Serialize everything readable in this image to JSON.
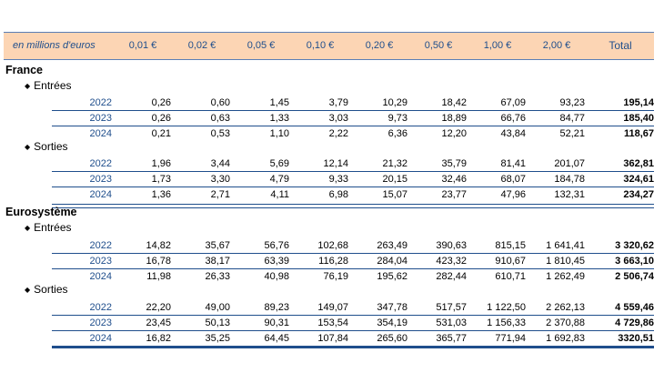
{
  "header": {
    "units": "en millions d'euros",
    "columns": [
      "0,01 €",
      "0,02 €",
      "0,05 €",
      "0,10 €",
      "0,20 €",
      "0,50 €",
      "1,00 €",
      "2,00 €"
    ],
    "total": "Total"
  },
  "sections": [
    {
      "title": "France",
      "groups": [
        {
          "label": "Entrées",
          "rows": [
            {
              "year": "2022",
              "values": [
                "0,26",
                "0,60",
                "1,45",
                "3,79",
                "10,29",
                "18,42",
                "67,09",
                "93,23"
              ],
              "total": "195,14"
            },
            {
              "year": "2023",
              "values": [
                "0,26",
                "0,63",
                "1,33",
                "3,03",
                "9,73",
                "18,89",
                "66,76",
                "84,77"
              ],
              "total": "185,40"
            },
            {
              "year": "2024",
              "values": [
                "0,21",
                "0,53",
                "1,10",
                "2,22",
                "6,36",
                "12,20",
                "43,84",
                "52,21"
              ],
              "total": "118,67"
            }
          ]
        },
        {
          "label": "Sorties",
          "rows": [
            {
              "year": "2022",
              "values": [
                "1,96",
                "3,44",
                "5,69",
                "12,14",
                "21,32",
                "35,79",
                "81,41",
                "201,07"
              ],
              "total": "362,81"
            },
            {
              "year": "2023",
              "values": [
                "1,73",
                "3,30",
                "4,79",
                "9,33",
                "20,15",
                "32,46",
                "68,07",
                "184,78"
              ],
              "total": "324,61"
            },
            {
              "year": "2024",
              "values": [
                "1,36",
                "2,71",
                "4,11",
                "6,98",
                "15,07",
                "23,77",
                "47,96",
                "132,31"
              ],
              "total": "234,27"
            }
          ]
        }
      ]
    },
    {
      "title": "Eurosystème",
      "groups": [
        {
          "label": "Entrées",
          "rows": [
            {
              "year": "2022",
              "values": [
                "14,82",
                "35,67",
                "56,76",
                "102,68",
                "263,49",
                "390,63",
                "815,15",
                "1 641,41"
              ],
              "total": "3 320,62"
            },
            {
              "year": "2023",
              "values": [
                "16,78",
                "38,17",
                "63,39",
                "116,28",
                "284,04",
                "423,32",
                "910,67",
                "1 810,45"
              ],
              "total": "3 663,10"
            },
            {
              "year": "2024",
              "values": [
                "11,98",
                "26,33",
                "40,98",
                "76,19",
                "195,62",
                "282,44",
                "610,71",
                "1 262,49"
              ],
              "total": "2 506,74"
            }
          ]
        },
        {
          "label": "Sorties",
          "rows": [
            {
              "year": "2022",
              "values": [
                "22,20",
                "49,00",
                "89,23",
                "149,07",
                "347,78",
                "517,57",
                "1 122,50",
                "2 262,13"
              ],
              "total": "4 559,46"
            },
            {
              "year": "2023",
              "values": [
                "23,45",
                "50,13",
                "90,31",
                "153,54",
                "354,19",
                "531,03",
                "1 156,33",
                "2 370,88"
              ],
              "total": "4 729,86"
            },
            {
              "year": "2024",
              "values": [
                "16,82",
                "35,25",
                "64,45",
                "107,84",
                "265,60",
                "365,77",
                "771,94",
                "1 692,83"
              ],
              "total": "3320,51"
            }
          ]
        }
      ]
    }
  ]
}
